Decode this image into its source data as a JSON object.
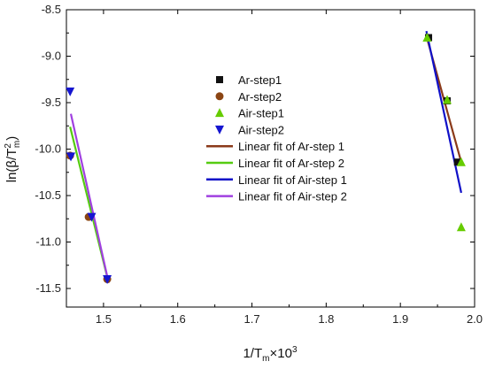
{
  "chart_data": {
    "type": "scatter",
    "xlabel": "1/T",
    "xlabel_sub": "m",
    "xlabel_suffix": "×10",
    "xlabel_sup": "3",
    "ylabel": "ln(β/T",
    "ylabel_sup": "2",
    "ylabel_sub": "m",
    "ylabel_end": ")",
    "xlim": [
      1.45,
      2.0
    ],
    "ylim": [
      -11.7,
      -8.5
    ],
    "xticks": [
      1.5,
      1.6,
      1.7,
      1.8,
      1.9,
      2.0
    ],
    "xtick_labels": [
      "1.5",
      "1.6",
      "1.7",
      "1.8",
      "1.9",
      "2.0"
    ],
    "yticks": [
      -11.5,
      -11.0,
      -10.5,
      -10.0,
      -9.5,
      -9.0,
      -8.5
    ],
    "ytick_labels": [
      "-11.5",
      "-11.0",
      "-10.5",
      "-10.0",
      "-9.5",
      "-9.0",
      "-8.5"
    ],
    "grid": false,
    "legend_position": "center",
    "series": [
      {
        "name": "Ar-step1",
        "kind": "marker",
        "marker": "square",
        "color": "#111111",
        "x": [
          1.938,
          1.963,
          1.977
        ],
        "y": [
          -8.8,
          -9.48,
          -10.14
        ]
      },
      {
        "name": "Ar-step2",
        "kind": "marker",
        "marker": "circle",
        "color": "#8B4513",
        "x": [
          1.455,
          1.48,
          1.505
        ],
        "y": [
          -10.07,
          -10.73,
          -11.4
        ]
      },
      {
        "name": "Air-step1",
        "kind": "marker",
        "marker": "triangle-up",
        "color": "#66cc00",
        "x": [
          1.936,
          1.963,
          1.982,
          1.982
        ],
        "y": [
          -8.8,
          -9.47,
          -10.14,
          -10.84
        ]
      },
      {
        "name": "Air-step2",
        "kind": "marker",
        "marker": "triangle-down",
        "color": "#1515d0",
        "x": [
          1.455,
          1.456,
          1.484,
          1.505
        ],
        "y": [
          -9.38,
          -10.08,
          -10.73,
          -11.4
        ]
      },
      {
        "name": "Linear fit of Ar-step 1",
        "kind": "line",
        "color": "#8B3A1A",
        "x": [
          1.935,
          1.983
        ],
        "y": [
          -8.78,
          -10.17
        ]
      },
      {
        "name": "Linear fit of Ar-step 2",
        "kind": "line",
        "color": "#55cc11",
        "x": [
          1.455,
          1.507
        ],
        "y": [
          -9.76,
          -11.44
        ]
      },
      {
        "name": "Linear fit of Air-step 1",
        "kind": "line",
        "color": "#1010c8",
        "x": [
          1.935,
          1.982
        ],
        "y": [
          -8.73,
          -10.47
        ]
      },
      {
        "name": "Linear fit of Air-step 2",
        "kind": "line",
        "color": "#a040e0",
        "x": [
          1.456,
          1.507
        ],
        "y": [
          -9.62,
          -11.44
        ]
      }
    ]
  }
}
